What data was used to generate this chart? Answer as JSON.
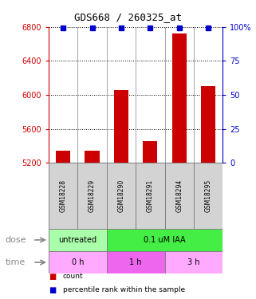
{
  "title": "GDS668 / 260325_at",
  "samples": [
    "GSM18228",
    "GSM18229",
    "GSM18290",
    "GSM18291",
    "GSM18294",
    "GSM18295"
  ],
  "counts": [
    5340,
    5340,
    6060,
    5460,
    6720,
    6100
  ],
  "percentile_ranks": [
    99,
    99,
    99,
    99,
    99,
    99
  ],
  "ylim_left": [
    5200,
    6800
  ],
  "ylim_right": [
    0,
    100
  ],
  "yticks_left": [
    5200,
    5600,
    6000,
    6400,
    6800
  ],
  "yticks_right": [
    0,
    25,
    50,
    75,
    100
  ],
  "bar_color": "#cc0000",
  "dot_color": "#0000cc",
  "dose_groups": [
    {
      "label": "untreated",
      "start": 0,
      "end": 2,
      "color": "#aaffaa"
    },
    {
      "label": "0.1 uM IAA",
      "start": 2,
      "end": 6,
      "color": "#44ee44"
    }
  ],
  "time_groups": [
    {
      "label": "0 h",
      "start": 0,
      "end": 2,
      "color": "#ffaaff"
    },
    {
      "label": "1 h",
      "start": 2,
      "end": 4,
      "color": "#ee66ee"
    },
    {
      "label": "3 h",
      "start": 4,
      "end": 6,
      "color": "#ffaaff"
    }
  ],
  "left_axis_color": "#cc0000",
  "right_axis_color": "#0000cc",
  "background_color": "#ffffff",
  "dose_label": "dose",
  "time_label": "time",
  "legend_count": "count",
  "legend_pct": "percentile rank within the sample"
}
